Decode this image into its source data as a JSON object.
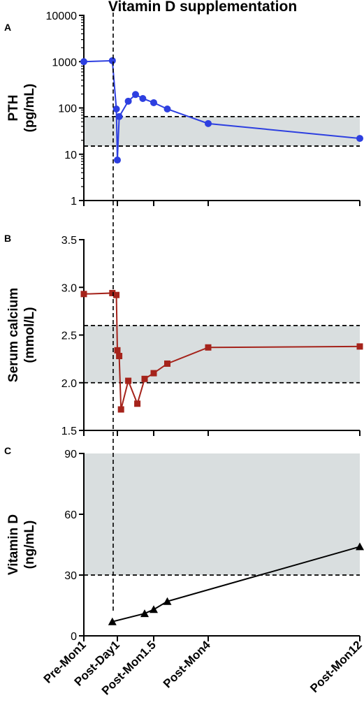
{
  "figure": {
    "title": "Vitamin D supplementation",
    "x_tick_labels": [
      "Pre-Mon1",
      "Post-Day1",
      "Post-Mon1.5",
      "Post-Mon4",
      "Post-Mon12"
    ]
  },
  "chart_data": [
    {
      "panel": "A",
      "type": "line",
      "ylabel_lines": [
        "PTH",
        "(pg/mL)"
      ],
      "y_scale": "log",
      "ylim": [
        1,
        10000
      ],
      "y_ticks": [
        1,
        10,
        100,
        1000,
        10000
      ],
      "y_tick_labels": [
        "1",
        "10",
        "100",
        "1000",
        "10000"
      ],
      "reference_range": [
        15,
        65
      ],
      "series": [
        {
          "color": "#2d3fe0",
          "marker": "circle",
          "x": [
            0,
            0.85,
            0.97,
            1.0,
            1.05,
            1.3,
            1.5,
            1.7,
            2.0,
            2.5,
            4.0,
            12.0
          ],
          "y": [
            1000,
            1050,
            95,
            7.5,
            65,
            140,
            195,
            160,
            130,
            95,
            46,
            22
          ]
        }
      ]
    },
    {
      "panel": "B",
      "type": "line",
      "ylabel_lines": [
        "Serum calcium",
        "(mmol/L)"
      ],
      "ylim": [
        1.5,
        3.5
      ],
      "y_ticks": [
        1.5,
        2.0,
        2.5,
        3.0,
        3.5
      ],
      "y_tick_labels": [
        "1.5",
        "2.0",
        "2.5",
        "3.0",
        "3.5"
      ],
      "reference_range": [
        2.0,
        2.6
      ],
      "series": [
        {
          "color": "#a5231b",
          "marker": "square",
          "x": [
            0,
            0.85,
            0.97,
            1.0,
            1.05,
            1.1,
            1.3,
            1.55,
            1.75,
            2.0,
            2.5,
            4.0,
            12.0
          ],
          "y": [
            2.93,
            2.94,
            2.92,
            2.34,
            2.28,
            1.72,
            2.02,
            1.78,
            2.04,
            2.1,
            2.2,
            2.37,
            2.38
          ]
        }
      ]
    },
    {
      "panel": "C",
      "type": "line",
      "ylabel_lines": [
        "Vitamin D",
        "(ng/mL)"
      ],
      "ylim": [
        0,
        90
      ],
      "y_ticks": [
        0,
        30,
        60,
        90
      ],
      "y_tick_labels": [
        "0",
        "30",
        "60",
        "90"
      ],
      "reference_range": [
        30,
        90
      ],
      "series": [
        {
          "color": "#000000",
          "marker": "triangle",
          "x": [
            0.85,
            1.75,
            2.0,
            2.5,
            12.0
          ],
          "y": [
            7,
            11,
            13,
            17,
            44
          ]
        }
      ]
    }
  ]
}
